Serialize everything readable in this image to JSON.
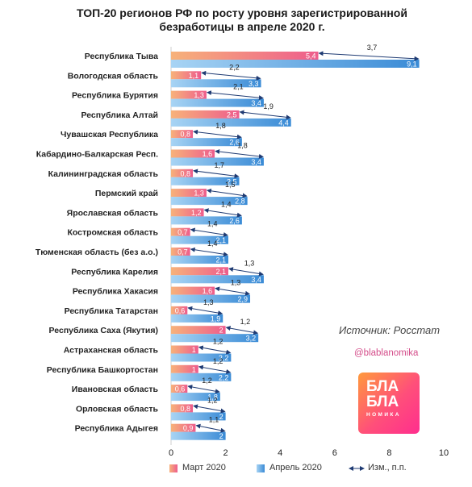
{
  "title_line1": "ТОП-20 регионов РФ по росту уровня зарегистрированной",
  "title_line2": "безработицы в апреле 2020 г.",
  "source_text": "Источник: Росстат",
  "handle_text": "@blablanomika",
  "logo": {
    "line1": "БЛА",
    "line2": "БЛА",
    "line3": "НОМИКА"
  },
  "legend": {
    "march": "Март 2020",
    "april": "Апрель 2020",
    "change": "Изм., п.п."
  },
  "colors": {
    "march": "#f06f8f",
    "april": "#4d9ee0",
    "arrow": "#1f3b73"
  },
  "chart_data": {
    "type": "bar",
    "orientation": "horizontal",
    "title": "ТОП-20 регионов РФ по росту уровня зарегистрированной безработицы в апреле 2020 г.",
    "xlim": [
      0,
      10
    ],
    "xticks": [
      0,
      2,
      4,
      6,
      8,
      10
    ],
    "grid": false,
    "legend_position": "bottom",
    "categories": [
      "Республика Тыва",
      "Вологодская область",
      "Республика Бурятия",
      "Республика Алтай",
      "Чувашская Республика",
      "Кабардино-Балкарская Респ.",
      "Калининградская область",
      "Пермский край",
      "Ярославская область",
      "Костромская область",
      "Тюменская область (без а.о.)",
      "Республика Карелия",
      "Республика Хакасия",
      "Республика Татарстан",
      "Республика Саха (Якутия)",
      "Астраханская область",
      "Республика Башкортостан",
      "Ивановская область",
      "Орловская область",
      "Республика Адыгея"
    ],
    "series": [
      {
        "name": "Март 2020",
        "values": [
          5.4,
          1.1,
          1.3,
          2.5,
          0.8,
          1.6,
          0.8,
          1.3,
          1.2,
          0.7,
          0.7,
          2.1,
          1.6,
          0.6,
          2,
          1,
          1,
          0.6,
          0.8,
          0.9
        ]
      },
      {
        "name": "Апрель 2020",
        "values": [
          9.1,
          3.3,
          3.4,
          4.4,
          2.6,
          3.4,
          2.5,
          2.8,
          2.6,
          2.1,
          2.1,
          3.4,
          2.9,
          1.9,
          3.2,
          2.2,
          2.2,
          1.8,
          2,
          2
        ]
      },
      {
        "name": "Изм., п.п.",
        "values": [
          3.7,
          2.2,
          2.1,
          1.9,
          1.8,
          1.8,
          1.7,
          1.5,
          1.4,
          1.4,
          1.4,
          1.3,
          1.3,
          1.3,
          1.2,
          1.2,
          1.2,
          1.2,
          1.2,
          1.1
        ]
      }
    ]
  }
}
